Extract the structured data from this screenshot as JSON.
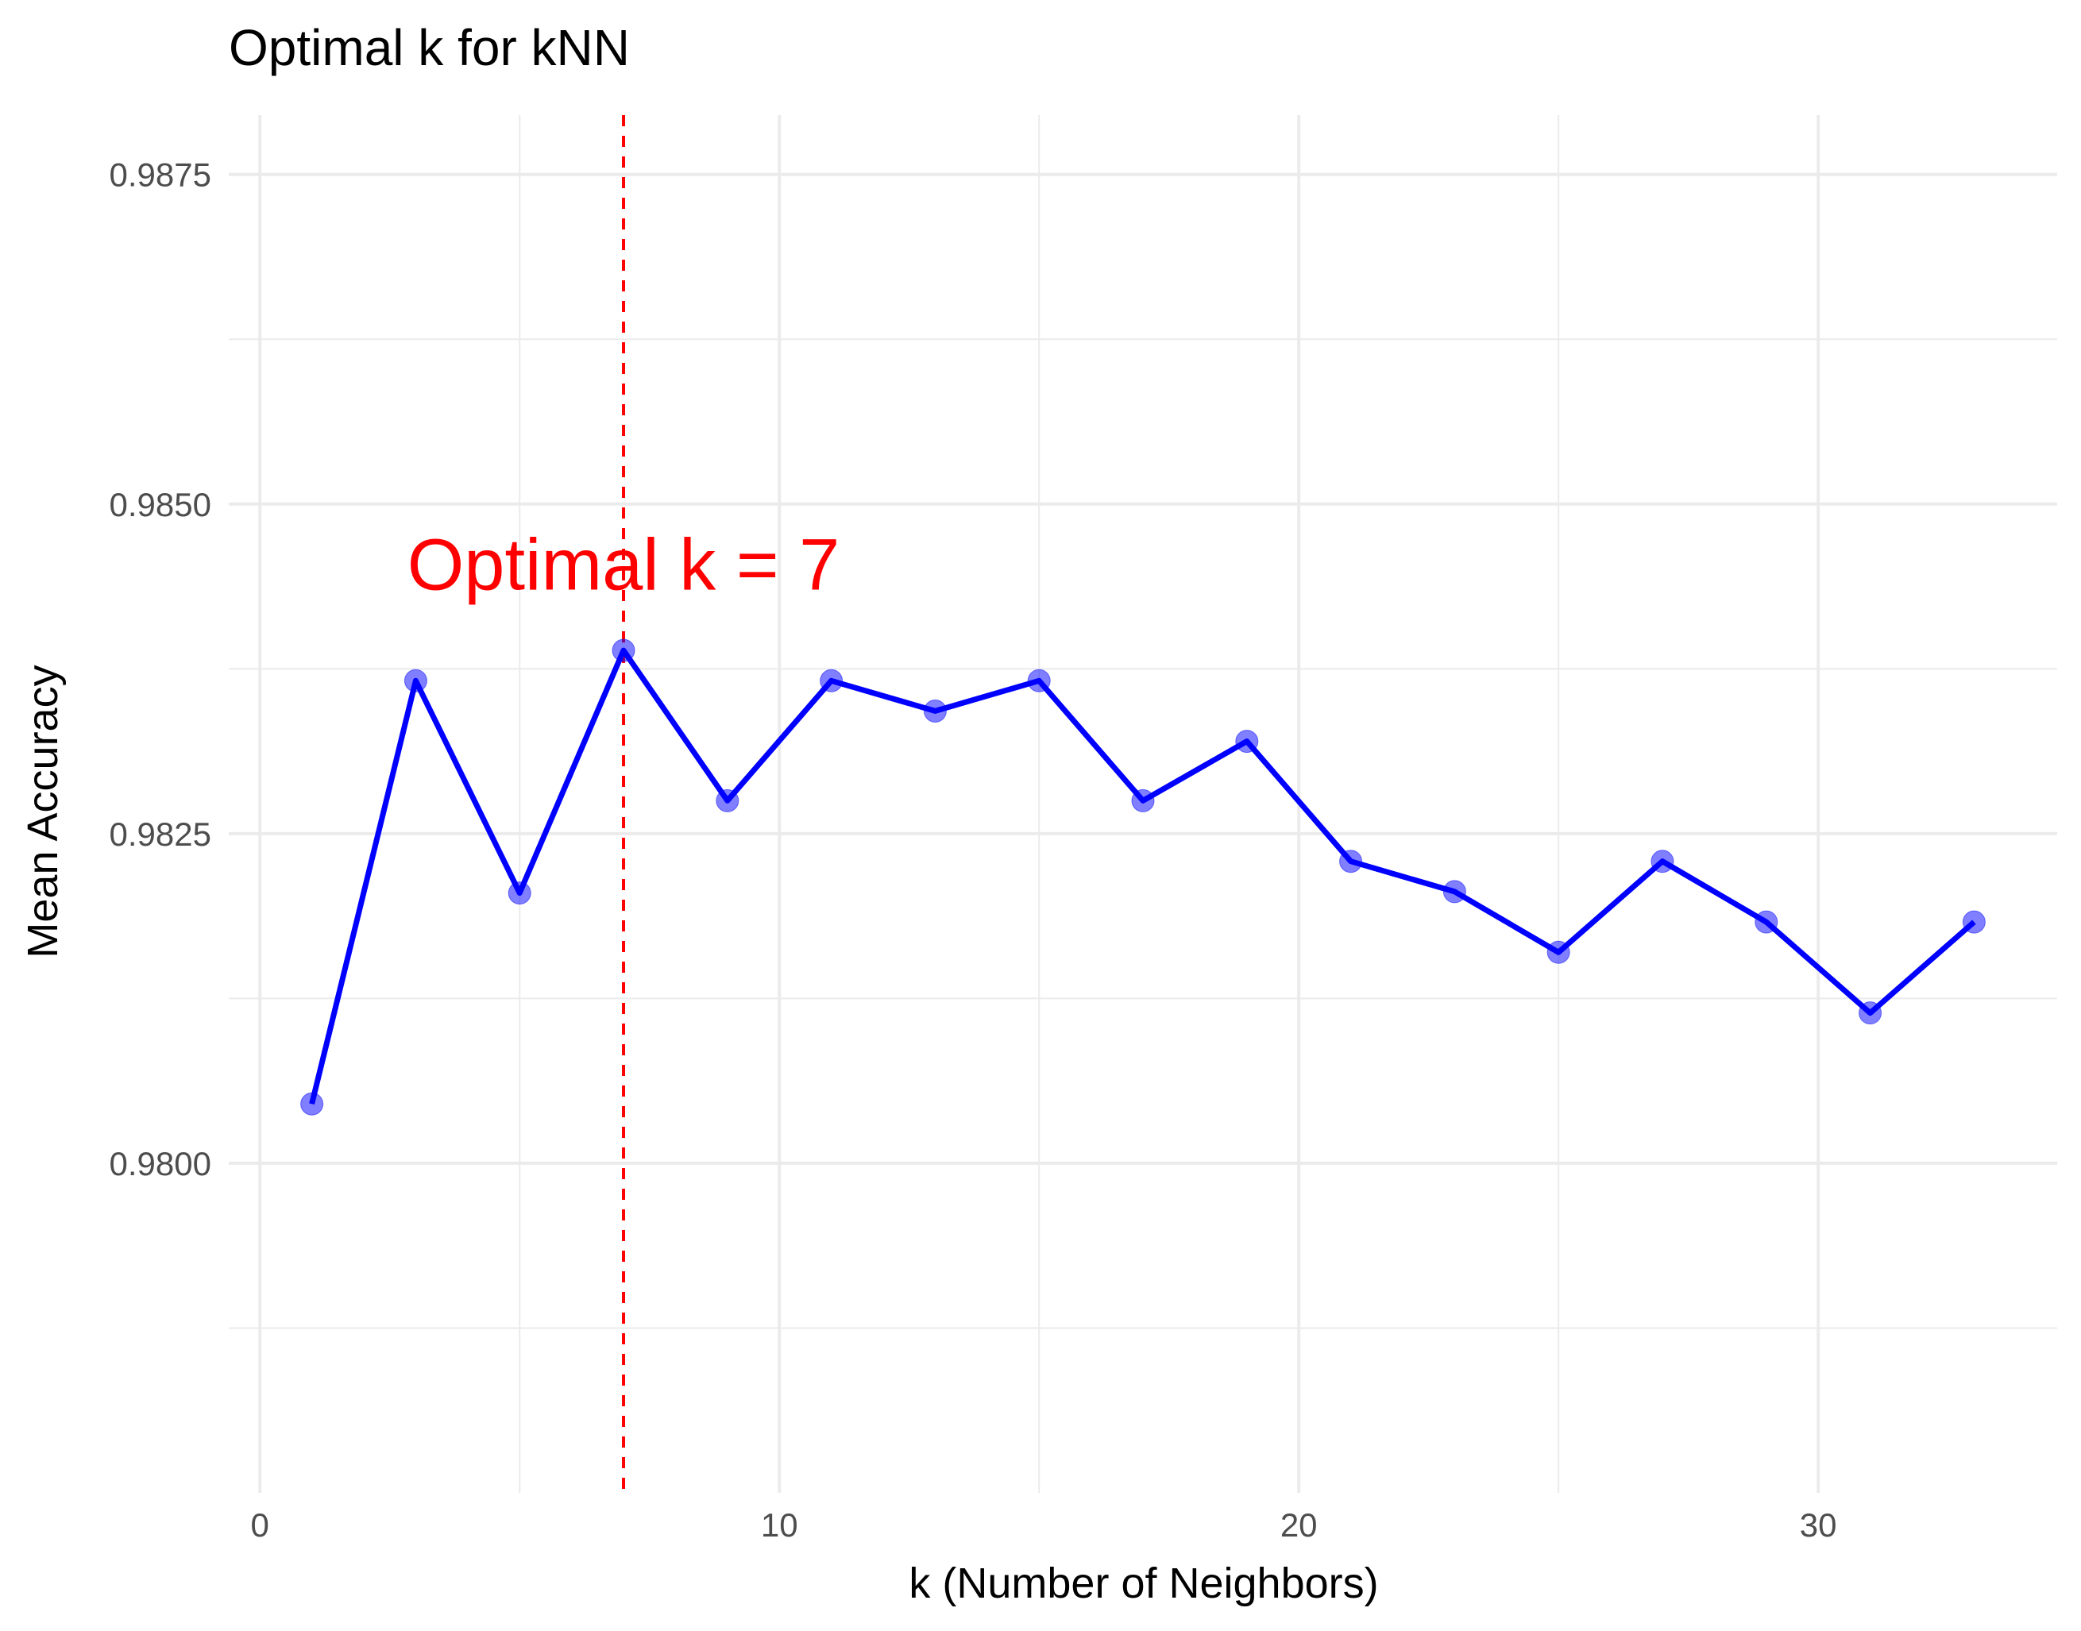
{
  "chart_data": {
    "type": "line",
    "title": "Optimal k for kNN",
    "xlabel": "k (Number of Neighbors)",
    "ylabel": "Mean Accuracy",
    "xlim": [
      -0.6,
      34.6
    ],
    "ylim": [
      0.9775,
      0.98795
    ],
    "x_ticks": [
      0,
      10,
      20,
      30
    ],
    "x_minor_ticks": [
      5,
      15,
      25
    ],
    "y_ticks": [
      0.98,
      0.9825,
      0.985,
      0.9875
    ],
    "y_tick_labels": [
      "0.9800",
      "0.9825",
      "0.9850",
      "0.9875"
    ],
    "y_minor_ticks": [
      0.97875,
      0.98125,
      0.98375,
      0.98625
    ],
    "grid": true,
    "series": [
      {
        "x": [
          1,
          3,
          5,
          7,
          9,
          11,
          13,
          15,
          17,
          19,
          21,
          23,
          25,
          27,
          29,
          31,
          33
        ],
        "values": [
          0.98045,
          0.98366,
          0.98205,
          0.98389,
          0.98275,
          0.98366,
          0.98343,
          0.98366,
          0.98275,
          0.9832,
          0.98229,
          0.98206,
          0.9816,
          0.98229,
          0.98183,
          0.98114,
          0.98183
        ],
        "color": "#0000ff",
        "point_color": "#0000ff",
        "point_opacity": 0.5
      }
    ],
    "vline": {
      "x": 7,
      "color": "#ff0000",
      "style": "dashed"
    },
    "annotation": {
      "text": "Optimal k = 7",
      "x": 7,
      "y": 0.98435,
      "color": "#ff0000"
    }
  }
}
